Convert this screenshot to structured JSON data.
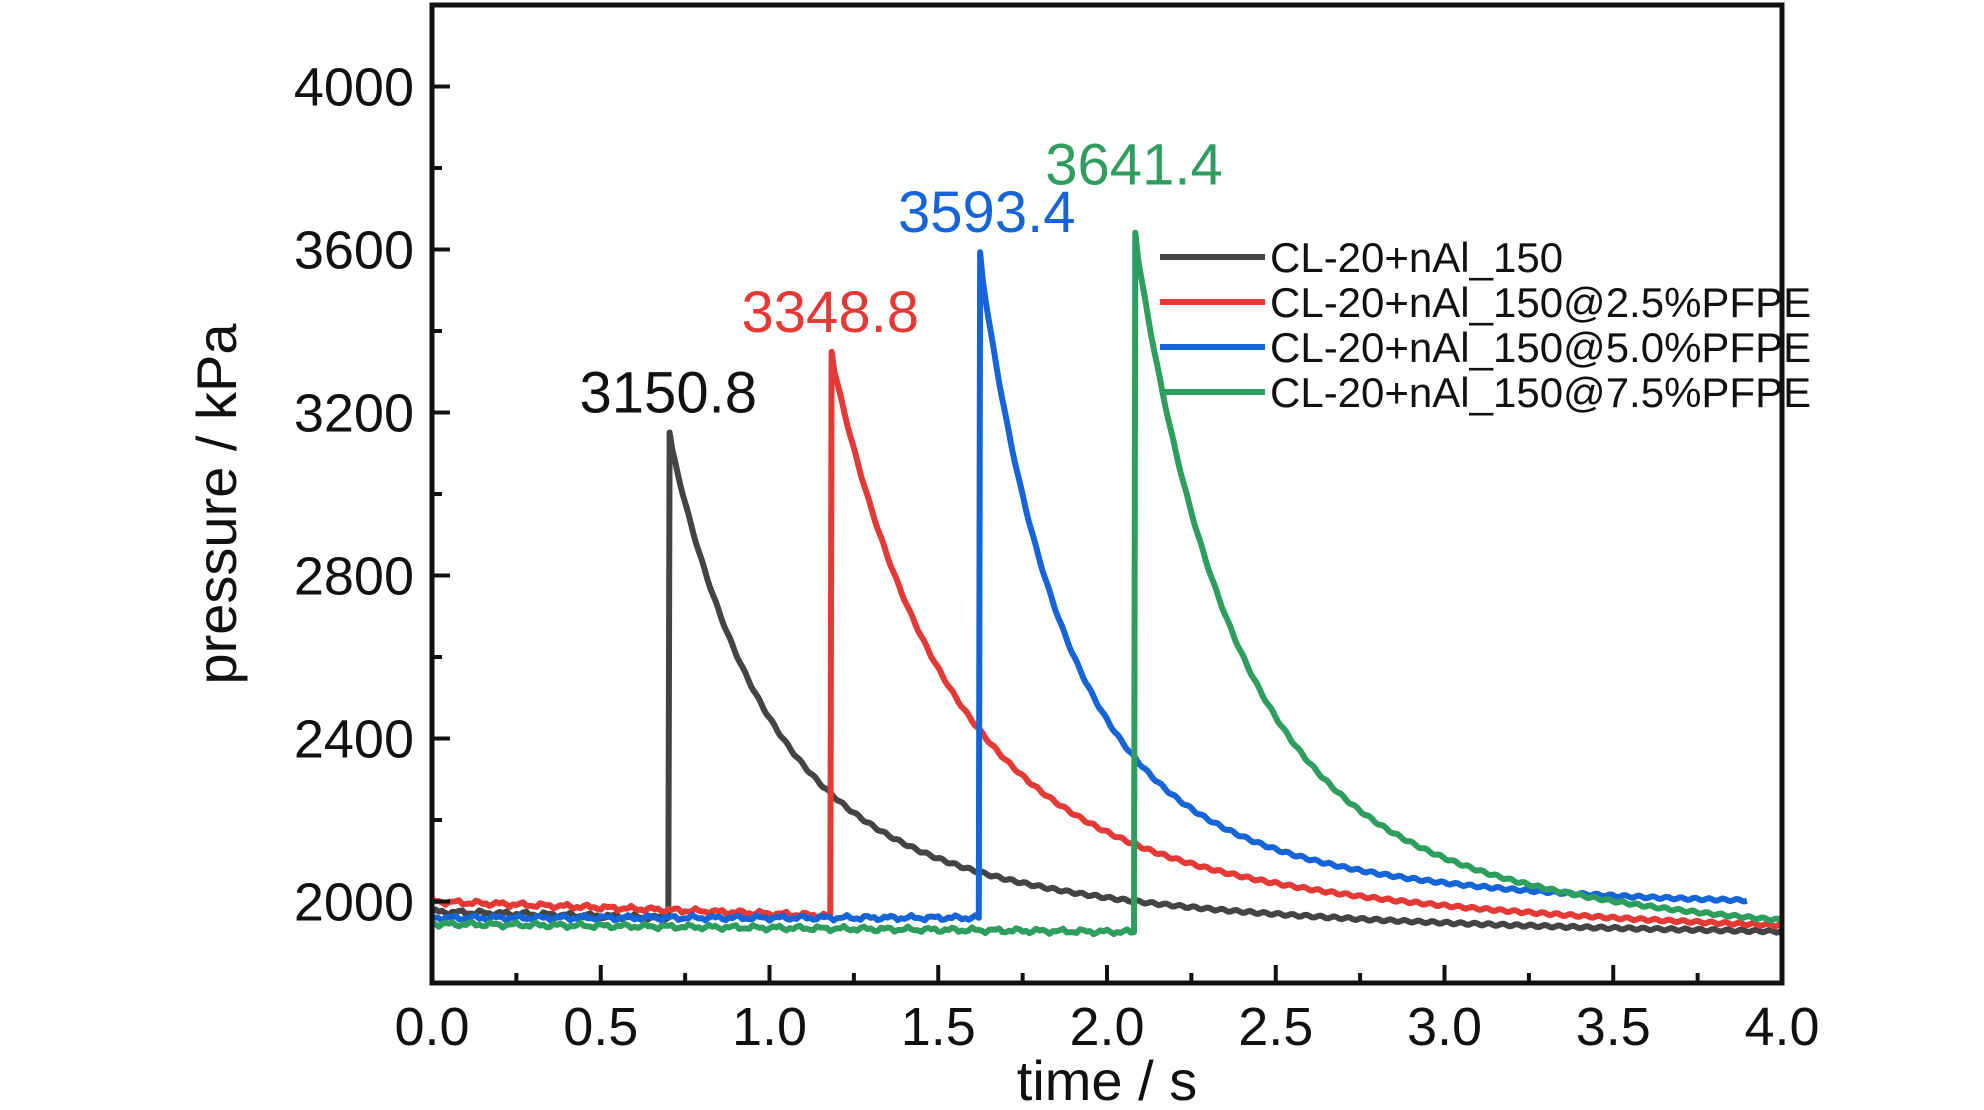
{
  "chart_data": {
    "type": "line",
    "title": "",
    "xlabel": "time / s",
    "ylabel": "pressure / kPa",
    "xlim": [
      0.0,
      4.0
    ],
    "ylim": [
      1800,
      4200
    ],
    "xticks": [
      "0.0",
      "0.5",
      "1.0",
      "1.5",
      "2.0",
      "2.5",
      "3.0",
      "3.5",
      "4.0"
    ],
    "yticks": [
      "2000",
      "2400",
      "2800",
      "3200",
      "3600",
      "4000"
    ],
    "grid": false,
    "legend_position": "top-right",
    "series": [
      {
        "name": "CL-20+nAl_150",
        "color": "#444444",
        "baseline": 1975,
        "baseline_end": 1960,
        "ignition_time": 0.7,
        "peak": 3150.8,
        "decay_end_time": 4.0,
        "final_value": 1920,
        "tau": 0.26,
        "peak_label": "3150.8"
      },
      {
        "name": "CL-20+nAl_150@2.5%PFPE",
        "color": "#e53935",
        "baseline": 2000,
        "baseline_end": 1965,
        "ignition_time": 1.18,
        "peak": 3348.8,
        "decay_end_time": 4.0,
        "final_value": 1920,
        "tau": 0.3,
        "peak_label": "3348.8"
      },
      {
        "name": "CL-20+nAl_150@5.0%PFPE",
        "color": "#1565d8",
        "baseline": 1960,
        "baseline_end": 1960,
        "ignition_time": 1.62,
        "peak": 3593.4,
        "decay_end_time": 3.9,
        "final_value": 1985,
        "tau": 0.22,
        "peak_label": "3593.4"
      },
      {
        "name": "CL-20+nAl_150@7.5%PFPE",
        "color": "#2e9e5e",
        "baseline": 1945,
        "baseline_end": 1925,
        "ignition_time": 2.08,
        "peak": 3641.4,
        "decay_end_time": 4.0,
        "final_value": 1905,
        "tau": 0.26,
        "peak_label": "3641.4"
      }
    ]
  }
}
